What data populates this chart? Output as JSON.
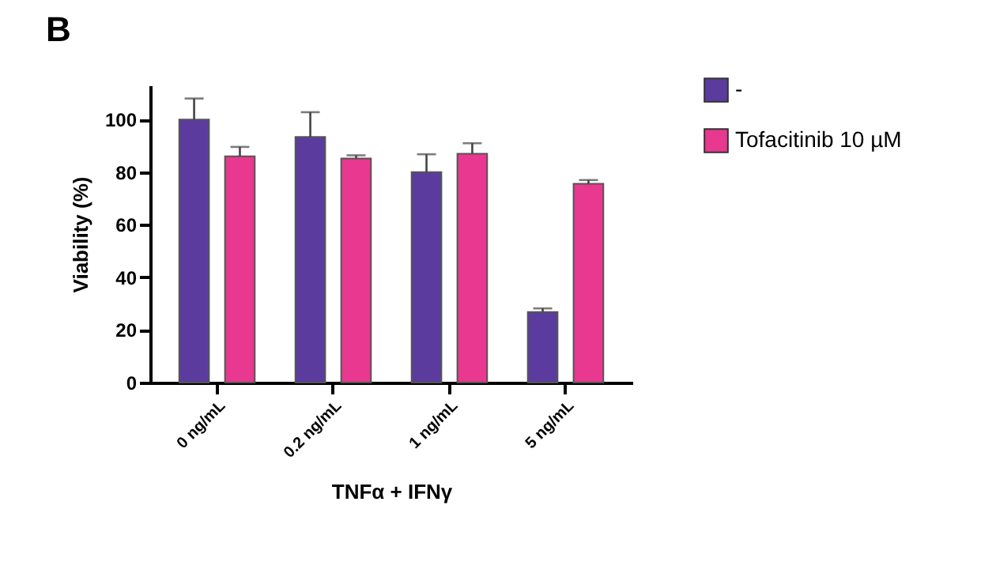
{
  "chart_data": {
    "type": "bar",
    "title": "B",
    "xlabel": "TNFα + IFNγ",
    "ylabel": "Viability (%)",
    "categories": [
      "0 ng/mL",
      "0.2 ng/mL",
      "1 ng/mL",
      "5 ng/mL"
    ],
    "series": [
      {
        "name": "-",
        "color": "#5b3c9e",
        "values": [
          100,
          93.4,
          80,
          26.8
        ],
        "errors": [
          [
            100,
            108
          ],
          [
            93.4,
            102.8
          ],
          [
            80,
            86.8
          ],
          [
            26.8,
            28.2
          ]
        ]
      },
      {
        "name": "Tofacitinib 10 µM",
        "color": "#e8388f",
        "values": [
          86,
          85.2,
          87,
          75.6
        ],
        "errors": [
          [
            86,
            89.6
          ],
          [
            85.2,
            86.4
          ],
          [
            87,
            91
          ],
          [
            75.6,
            77
          ]
        ]
      }
    ],
    "ylim": [
      0,
      113
    ],
    "yticks": [
      0,
      20,
      40,
      60,
      80,
      100
    ],
    "grid": false,
    "legend": "top right"
  }
}
